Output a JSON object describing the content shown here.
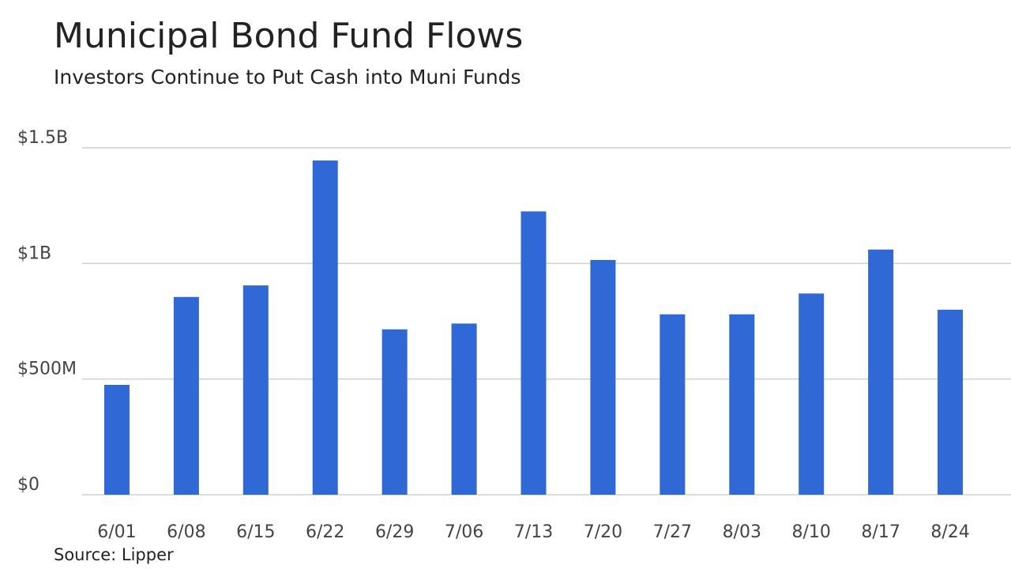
{
  "chart_data": {
    "type": "bar",
    "title": "Municipal Bond Fund Flows",
    "subtitle": "Investors Continue to Put Cash into Muni Funds",
    "source": "Source: Lipper",
    "categories": [
      "6/01",
      "6/08",
      "6/15",
      "6/22",
      "6/29",
      "7/06",
      "7/13",
      "7/20",
      "7/27",
      "8/03",
      "8/10",
      "8/17",
      "8/24"
    ],
    "values": [
      475000000,
      855000000,
      905000000,
      1445000000,
      715000000,
      740000000,
      1225000000,
      1015000000,
      780000000,
      780000000,
      870000000,
      1060000000,
      800000000
    ],
    "color": "#3069d6",
    "ylim": [
      0,
      1500000000
    ],
    "yticks": [
      {
        "value": 0,
        "label": "$0"
      },
      {
        "value": 500000000,
        "label": "$500M"
      },
      {
        "value": 1000000000,
        "label": "$1B"
      },
      {
        "value": 1500000000,
        "label": "$1.5B"
      }
    ],
    "grid": true
  }
}
